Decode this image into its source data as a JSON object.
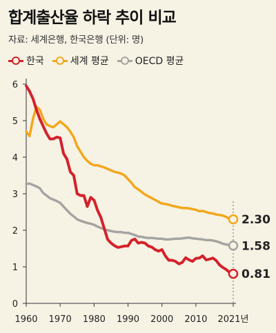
{
  "title": "합계출산율 하락 추이 비교",
  "source": "자료: 세계은행, 한국은행 (단위: 명)",
  "chart_data": {
    "type": "line",
    "title": "합계출산율 하락 추이 비교",
    "ylim": [
      0,
      6
    ],
    "xlim": [
      1960,
      2021
    ],
    "y_ticks": [
      "0",
      "1",
      "2",
      "3",
      "4",
      "5",
      "6"
    ],
    "x_ticks": [
      {
        "x": 1960,
        "label": "1960"
      },
      {
        "x": 1970,
        "label": "1970"
      },
      {
        "x": 1980,
        "label": "1980"
      },
      {
        "x": 1990,
        "label": "1990"
      },
      {
        "x": 2000,
        "label": "2000"
      },
      {
        "x": 2010,
        "label": "2010"
      },
      {
        "x": 2021,
        "label": "2021년"
      }
    ],
    "grid": "none",
    "legend_position": "top-left",
    "series": [
      {
        "name": "한국",
        "color": "#d4212a",
        "end_label": "0.81",
        "x": [
          1960,
          1961,
          1962,
          1963,
          1964,
          1965,
          1966,
          1967,
          1968,
          1969,
          1970,
          1971,
          1972,
          1973,
          1974,
          1975,
          1976,
          1977,
          1978,
          1979,
          1980,
          1981,
          1982,
          1983,
          1984,
          1985,
          1986,
          1987,
          1988,
          1989,
          1990,
          1991,
          1992,
          1993,
          1994,
          1995,
          1996,
          1997,
          1998,
          1999,
          2000,
          2001,
          2002,
          2003,
          2004,
          2005,
          2006,
          2007,
          2008,
          2009,
          2010,
          2011,
          2012,
          2013,
          2014,
          2015,
          2016,
          2017,
          2018,
          2019,
          2020,
          2021
        ],
        "y": [
          5.95,
          5.8,
          5.6,
          5.3,
          5.05,
          4.85,
          4.65,
          4.5,
          4.5,
          4.55,
          4.53,
          4.1,
          3.95,
          3.6,
          3.5,
          3.0,
          2.95,
          2.95,
          2.65,
          2.9,
          2.82,
          2.55,
          2.35,
          2.05,
          1.75,
          1.65,
          1.58,
          1.53,
          1.55,
          1.57,
          1.57,
          1.72,
          1.76,
          1.65,
          1.67,
          1.65,
          1.57,
          1.54,
          1.47,
          1.43,
          1.47,
          1.3,
          1.18,
          1.18,
          1.15,
          1.08,
          1.12,
          1.25,
          1.19,
          1.15,
          1.23,
          1.24,
          1.3,
          1.19,
          1.21,
          1.24,
          1.17,
          1.05,
          0.98,
          0.92,
          0.84,
          0.81
        ]
      },
      {
        "name": "세계 평균",
        "color": "#f2a71c",
        "end_label": "2.30",
        "x": [
          1960,
          1961,
          1962,
          1963,
          1964,
          1965,
          1966,
          1967,
          1968,
          1969,
          1970,
          1971,
          1972,
          1973,
          1974,
          1975,
          1976,
          1977,
          1978,
          1979,
          1980,
          1981,
          1982,
          1983,
          1984,
          1985,
          1986,
          1987,
          1988,
          1989,
          1990,
          1991,
          1992,
          1993,
          1994,
          1995,
          1996,
          1997,
          1998,
          1999,
          2000,
          2001,
          2002,
          2003,
          2004,
          2005,
          2006,
          2007,
          2008,
          2009,
          2010,
          2011,
          2012,
          2013,
          2014,
          2015,
          2016,
          2017,
          2018,
          2019,
          2020,
          2021
        ],
        "y": [
          4.7,
          4.58,
          5.05,
          5.38,
          5.3,
          5.05,
          4.9,
          4.85,
          4.82,
          4.9,
          4.98,
          4.9,
          4.82,
          4.7,
          4.55,
          4.3,
          4.15,
          4.0,
          3.9,
          3.82,
          3.78,
          3.78,
          3.75,
          3.72,
          3.68,
          3.64,
          3.6,
          3.58,
          3.55,
          3.5,
          3.4,
          3.3,
          3.18,
          3.12,
          3.05,
          2.98,
          2.93,
          2.88,
          2.83,
          2.78,
          2.73,
          2.72,
          2.7,
          2.67,
          2.65,
          2.63,
          2.61,
          2.61,
          2.6,
          2.58,
          2.56,
          2.52,
          2.53,
          2.5,
          2.47,
          2.46,
          2.43,
          2.42,
          2.4,
          2.36,
          2.3,
          2.3
        ]
      },
      {
        "name": "OECD 평균",
        "color": "#a5a4a1",
        "end_label": "1.58",
        "x": [
          1960,
          1961,
          1962,
          1963,
          1964,
          1965,
          1966,
          1967,
          1968,
          1969,
          1970,
          1971,
          1972,
          1973,
          1974,
          1975,
          1976,
          1977,
          1978,
          1979,
          1980,
          1981,
          1982,
          1983,
          1984,
          1985,
          1986,
          1987,
          1988,
          1989,
          1990,
          1991,
          1992,
          1993,
          1994,
          1995,
          1996,
          1997,
          1998,
          1999,
          2000,
          2001,
          2002,
          2003,
          2004,
          2005,
          2006,
          2007,
          2008,
          2009,
          2010,
          2011,
          2012,
          2013,
          2014,
          2015,
          2016,
          2017,
          2018,
          2019,
          2020,
          2021
        ],
        "y": [
          3.27,
          3.28,
          3.24,
          3.2,
          3.15,
          3.02,
          2.95,
          2.88,
          2.84,
          2.8,
          2.75,
          2.65,
          2.55,
          2.45,
          2.38,
          2.3,
          2.26,
          2.23,
          2.2,
          2.18,
          2.15,
          2.1,
          2.06,
          2.03,
          2.0,
          1.98,
          1.96,
          1.95,
          1.95,
          1.93,
          1.93,
          1.9,
          1.87,
          1.83,
          1.82,
          1.8,
          1.79,
          1.79,
          1.78,
          1.77,
          1.77,
          1.75,
          1.75,
          1.76,
          1.77,
          1.77,
          1.78,
          1.79,
          1.8,
          1.78,
          1.77,
          1.76,
          1.75,
          1.73,
          1.73,
          1.72,
          1.7,
          1.67,
          1.63,
          1.61,
          1.59,
          1.58
        ]
      }
    ]
  }
}
